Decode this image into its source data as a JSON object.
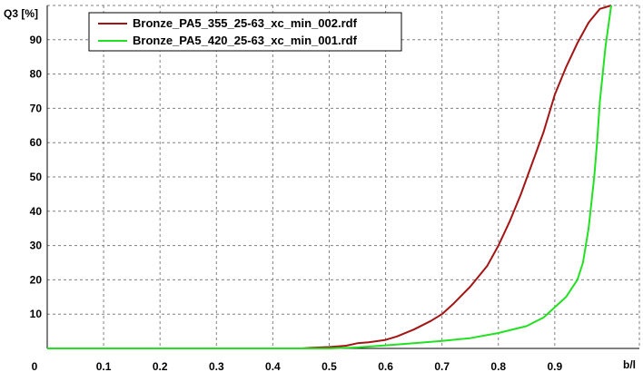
{
  "chart_data": {
    "type": "line",
    "title": "",
    "xlabel": "b/l",
    "ylabel": "Q3 [%]",
    "xlim": [
      0,
      1.05
    ],
    "ylim": [
      0,
      100
    ],
    "grid": true,
    "legend_position": "top-left",
    "x_ticks": [
      "0",
      "0.1",
      "0.2",
      "0.3",
      "0.4",
      "0.5",
      "0.6",
      "0.7",
      "0.8",
      "0.9"
    ],
    "y_ticks": [
      "10",
      "20",
      "30",
      "40",
      "50",
      "60",
      "70",
      "80",
      "90"
    ],
    "series": [
      {
        "name": "Bronze_PA5_355_25-63_xc_min_002.rdf",
        "color": "#a31515",
        "x": [
          0.0,
          0.45,
          0.47,
          0.5,
          0.53,
          0.55,
          0.57,
          0.6,
          0.62,
          0.65,
          0.68,
          0.7,
          0.72,
          0.75,
          0.78,
          0.8,
          0.82,
          0.84,
          0.86,
          0.88,
          0.9,
          0.92,
          0.94,
          0.96,
          0.98,
          1.0
        ],
        "y": [
          0,
          0,
          0.2,
          0.4,
          0.8,
          1.5,
          1.8,
          2.5,
          3.5,
          5.5,
          8,
          10,
          13,
          18,
          24,
          30,
          37,
          45,
          54,
          63,
          74,
          82,
          89,
          95,
          99,
          100
        ]
      },
      {
        "name": "Bronze_PA5_420_25-63_xc_min_001.rdf",
        "color": "#22e022",
        "x": [
          0.0,
          0.5,
          0.55,
          0.6,
          0.65,
          0.7,
          0.75,
          0.8,
          0.85,
          0.88,
          0.9,
          0.92,
          0.94,
          0.95,
          0.96,
          0.97,
          0.975,
          0.98,
          0.99,
          1.0
        ],
        "y": [
          0,
          0,
          0.3,
          0.9,
          1.5,
          2.2,
          3,
          4.5,
          6.5,
          9,
          12,
          15,
          20,
          25,
          35,
          50,
          60,
          72,
          88,
          100
        ]
      }
    ]
  }
}
